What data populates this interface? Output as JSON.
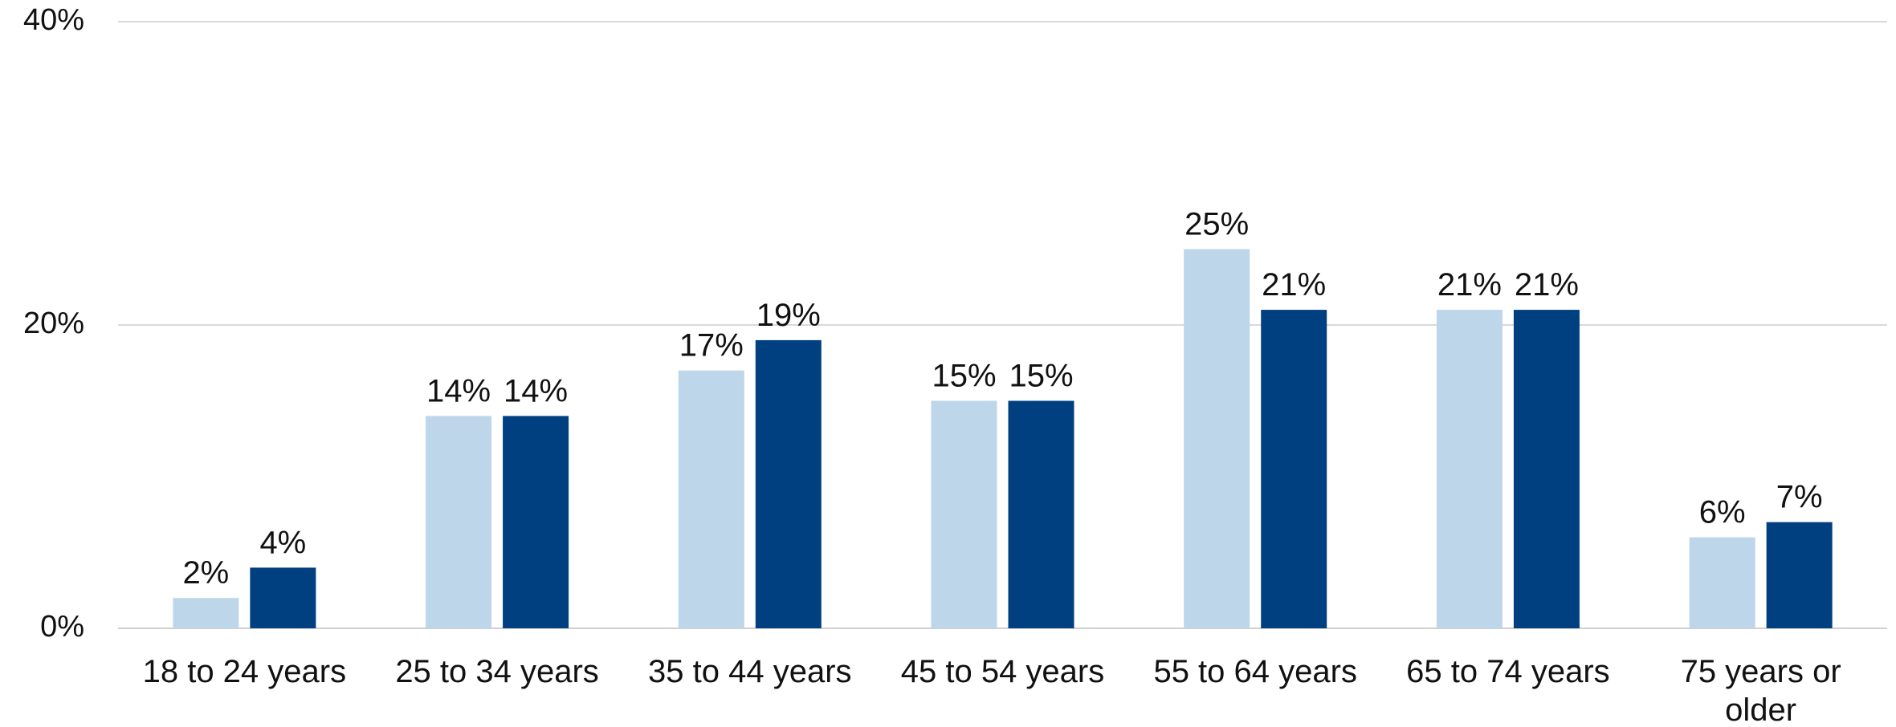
{
  "chart_data": {
    "type": "bar",
    "categories": [
      [
        "18 to 24 years"
      ],
      [
        "25 to 34 years"
      ],
      [
        "35 to 44 years"
      ],
      [
        "45 to 54 years"
      ],
      [
        "55 to 64 years"
      ],
      [
        "65 to 74 years"
      ],
      [
        "75 years or",
        "older"
      ]
    ],
    "series": [
      {
        "values": [
          2,
          14,
          17,
          15,
          25,
          21,
          6
        ],
        "labels": [
          "2%",
          "14%",
          "17%",
          "15%",
          "25%",
          "21%",
          "6%"
        ],
        "color": "#bdd6ea"
      },
      {
        "values": [
          4,
          14,
          19,
          15,
          21,
          21,
          7
        ],
        "labels": [
          "4%",
          "14%",
          "19%",
          "15%",
          "21%",
          "21%",
          "7%"
        ],
        "color": "#004080"
      }
    ],
    "yticks": [
      {
        "value": 0,
        "label": "0%"
      },
      {
        "value": 20,
        "label": "20%"
      },
      {
        "value": 40,
        "label": "40%"
      }
    ],
    "ylim": [
      0,
      40
    ],
    "grid": true,
    "legend": "none",
    "title": "",
    "xlabel": "",
    "ylabel": ""
  }
}
